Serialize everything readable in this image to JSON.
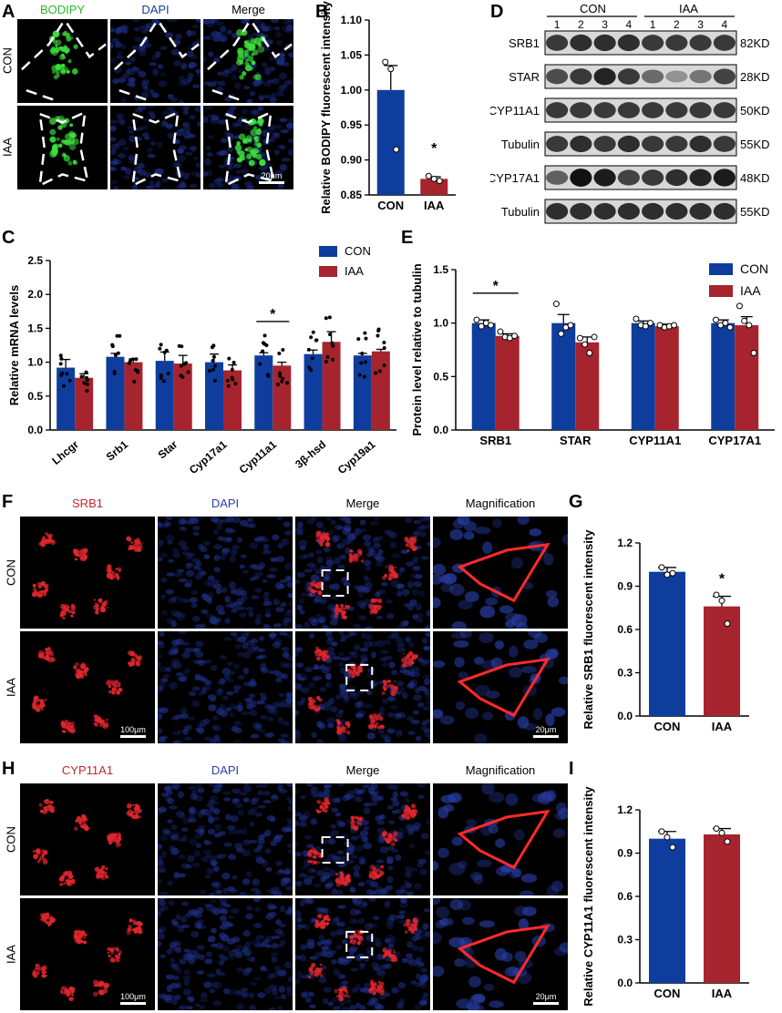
{
  "panels": {
    "A": {
      "letter": "A",
      "columns": [
        "BODIPY",
        "DAPI",
        "Merge"
      ],
      "rows": [
        "CON",
        "IAA"
      ],
      "scale_bar": "20μm",
      "colors": {
        "BODIPY": "#2db52d",
        "DAPI": "#1f3aa0",
        "Merge": "#000000"
      }
    },
    "B": {
      "letter": "B"
    },
    "C": {
      "letter": "C"
    },
    "D": {
      "letter": "D",
      "group_labels": [
        "CON",
        "IAA"
      ],
      "lane_numbers": [
        "1",
        "2",
        "3",
        "4",
        "1",
        "2",
        "3",
        "4"
      ],
      "bands": [
        {
          "name": "SRB1",
          "size": "82KD"
        },
        {
          "name": "STAR",
          "size": "28KD"
        },
        {
          "name": "CYP11A1",
          "size": "50KD"
        },
        {
          "name": "Tubulin",
          "size": "55KD"
        },
        {
          "name": "CYP17A1",
          "size": "48KD"
        },
        {
          "name": "Tubulin",
          "size": "55KD"
        }
      ]
    },
    "E": {
      "letter": "E"
    },
    "F": {
      "letter": "F",
      "columns": [
        "SRB1",
        "DAPI",
        "Merge",
        "Magnification"
      ],
      "rows": [
        "CON",
        "IAA"
      ],
      "scale_bars": [
        "100μm",
        "20μm"
      ],
      "colors": {
        "SRB1": "#c0262d",
        "DAPI": "#2a3fa8",
        "Merge": "#000000",
        "Magnification": "#000000"
      }
    },
    "G": {
      "letter": "G"
    },
    "H": {
      "letter": "H",
      "columns": [
        "CYP11A1",
        "DAPI",
        "Merge",
        "Magnification"
      ],
      "rows": [
        "CON",
        "IAA"
      ],
      "scale_bars": [
        "100μm",
        "20μm"
      ],
      "colors": {
        "CYP11A1": "#c0262d",
        "DAPI": "#2a3fa8",
        "Merge": "#000000",
        "Magnification": "#000000"
      }
    },
    "I": {
      "letter": "I"
    }
  },
  "chart_data": [
    {
      "id": "B",
      "type": "bar",
      "categories": [
        "CON",
        "IAA"
      ],
      "values": [
        1.0,
        0.873
      ],
      "errors": [
        0.035,
        0.003
      ],
      "points": [
        [
          1.04,
          1.03,
          0.915
        ],
        [
          0.877,
          0.873,
          0.87
        ]
      ],
      "ylabel": "Relative  BODIPY fluorescent intensity",
      "ylim": [
        0.85,
        1.1
      ],
      "yticks": [
        "0.85",
        "0.90",
        "0.95",
        "1.00",
        "1.05",
        "1.10"
      ],
      "significance": "*",
      "colors": [
        "#0f3d9e",
        "#a6242d"
      ]
    },
    {
      "id": "C",
      "type": "bar",
      "categories": [
        "Lhcgr",
        "Srb1",
        "Star",
        "Cyp17a1",
        "Cyp11a1",
        "3β-hsd",
        "Cyp19a1"
      ],
      "series": [
        {
          "name": "CON",
          "values": [
            0.92,
            1.08,
            1.02,
            1.0,
            1.1,
            1.12,
            1.1
          ],
          "errors": [
            0.12,
            0.05,
            0.13,
            0.12,
            0.04,
            0.06,
            0.03
          ]
        },
        {
          "name": "IAA",
          "values": [
            0.77,
            1.0,
            0.98,
            0.88,
            0.95,
            1.3,
            1.16
          ],
          "errors": [
            0.06,
            0.05,
            0.12,
            0.08,
            0.05,
            0.15,
            0.03
          ]
        }
      ],
      "ylabel": "Relative mRNA levels",
      "ylim": [
        0,
        2.5
      ],
      "yticks": [
        "0.0",
        "0.5",
        "1.0",
        "1.5",
        "2.0",
        "2.5"
      ],
      "significance": {
        "category": "Cyp11a1",
        "mark": "*"
      },
      "colors": [
        "#0f3d9e",
        "#a6242d"
      ]
    },
    {
      "id": "E",
      "type": "bar",
      "categories": [
        "SRB1",
        "STAR",
        "CYP11A1",
        "CYP17A1"
      ],
      "series": [
        {
          "name": "CON",
          "values": [
            1.0,
            1.0,
            1.0,
            1.0
          ],
          "errors": [
            0.03,
            0.08,
            0.02,
            0.03
          ]
        },
        {
          "name": "IAA",
          "values": [
            0.88,
            0.82,
            0.97,
            0.98
          ],
          "errors": [
            0.02,
            0.05,
            0.02,
            0.08
          ]
        }
      ],
      "points": [
        [
          [
            1.03,
            0.97,
            1.0,
            0.98
          ],
          [
            0.92,
            0.87,
            0.86,
            0.88
          ]
        ],
        [
          [
            1.18,
            0.9,
            0.96,
            0.98
          ],
          [
            0.86,
            0.8,
            0.72,
            0.87
          ]
        ],
        [
          [
            1.04,
            0.98,
            0.97,
            1.0
          ],
          [
            0.98,
            0.96,
            0.97,
            0.98
          ]
        ],
        [
          [
            1.03,
            0.98,
            1.0,
            0.96
          ],
          [
            1.16,
            1.02,
            0.98,
            0.72
          ]
        ]
      ],
      "ylabel": "Protein level relative to tubulin",
      "ylim": [
        0,
        1.5
      ],
      "yticks": [
        "0.0",
        "0.5",
        "1.0",
        "1.5"
      ],
      "significance": {
        "category": "SRB1",
        "mark": "*"
      },
      "colors": [
        "#0f3d9e",
        "#a6242d"
      ]
    },
    {
      "id": "G",
      "type": "bar",
      "categories": [
        "CON",
        "IAA"
      ],
      "values": [
        1.0,
        0.76
      ],
      "errors": [
        0.03,
        0.07
      ],
      "points": [
        [
          1.03,
          0.98,
          0.99
        ],
        [
          0.84,
          0.8,
          0.64
        ]
      ],
      "ylabel": "Relative SRB1 fluorescent intensity",
      "ylim": [
        0,
        1.2
      ],
      "yticks": [
        "0.0",
        "0.3",
        "0.6",
        "0.9",
        "1.2"
      ],
      "significance": "*",
      "colors": [
        "#0f3d9e",
        "#a6242d"
      ]
    },
    {
      "id": "I",
      "type": "bar",
      "categories": [
        "CON",
        "IAA"
      ],
      "values": [
        1.0,
        1.03
      ],
      "errors": [
        0.05,
        0.04
      ],
      "points": [
        [
          1.05,
          1.01,
          0.94
        ],
        [
          1.07,
          1.04,
          0.98
        ]
      ],
      "ylabel": "Relative CYP11A1 fluorescent intensity",
      "ylim": [
        0,
        1.2
      ],
      "yticks": [
        "0.0",
        "0.3",
        "0.6",
        "0.9",
        "1.2"
      ],
      "colors": [
        "#0f3d9e",
        "#a6242d"
      ]
    }
  ]
}
